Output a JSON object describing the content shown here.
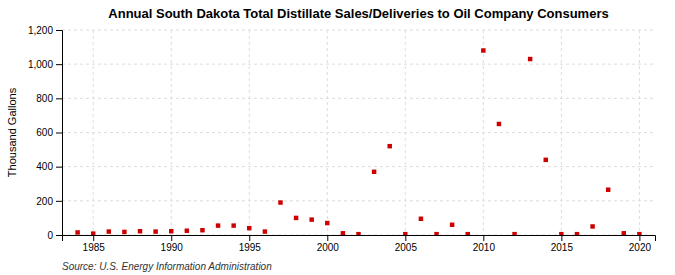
{
  "chart_data": {
    "type": "scatter",
    "title": "Annual South Dakota Total Distillate Sales/Deliveries to Oil Company Consumers",
    "ylabel": "Thousand Gallons",
    "source": "Source: U.S. Energy Information Administration",
    "color": "#cc0000",
    "marker": "square",
    "grid": true,
    "xlim": [
      1983,
      2021
    ],
    "ylim": [
      0,
      1200
    ],
    "xticks": [
      1985,
      1990,
      1995,
      2000,
      2005,
      2010,
      2015,
      2020
    ],
    "yticks": [
      0,
      200,
      400,
      600,
      800,
      {
        "value": 1000,
        "label": "1,000"
      },
      {
        "value": 1200,
        "label": "1,200"
      }
    ],
    "x": [
      1984,
      1985,
      1986,
      1987,
      1988,
      1989,
      1990,
      1991,
      1992,
      1993,
      1994,
      1995,
      1996,
      1997,
      1998,
      1999,
      2000,
      2001,
      2002,
      2003,
      2004,
      2005,
      2006,
      2007,
      2008,
      2009,
      2010,
      2011,
      2012,
      2013,
      2014,
      2015,
      2016,
      2017,
      2018,
      2019,
      2020
    ],
    "values": [
      15,
      8,
      20,
      18,
      22,
      20,
      22,
      25,
      28,
      55,
      55,
      40,
      20,
      190,
      100,
      90,
      70,
      10,
      5,
      370,
      520,
      5,
      95,
      5,
      60,
      5,
      1080,
      650,
      5,
      1030,
      440,
      5,
      5,
      50,
      265,
      10,
      5
    ]
  }
}
